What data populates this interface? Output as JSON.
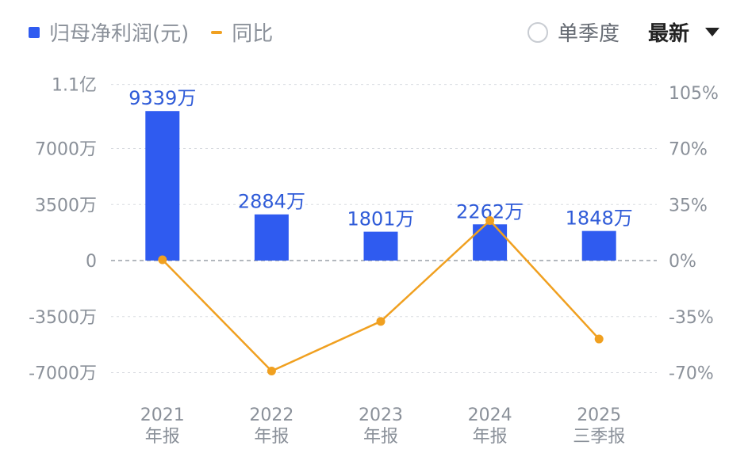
{
  "legend": {
    "bar_label": "归母净利润(元)",
    "line_label": "同比"
  },
  "controls": {
    "quarter_label": "单季度",
    "latest_label": "最新"
  },
  "colors": {
    "bar": "#2f5bf0",
    "line": "#f0a020",
    "axis_text": "#8a9099",
    "grid": "#d8dbe0"
  },
  "chart_data": {
    "type": "bar",
    "categories": [
      [
        "2021",
        "年报"
      ],
      [
        "2022",
        "年报"
      ],
      [
        "2023",
        "年报"
      ],
      [
        "2024",
        "年报"
      ],
      [
        "2025",
        "三季报"
      ]
    ],
    "series": [
      {
        "name": "归母净利润(元)",
        "type": "bar",
        "axis": "left",
        "values": [
          93390000,
          28840000,
          18010000,
          22620000,
          18480000
        ],
        "labels": [
          "9339万",
          "2884万",
          "1801万",
          "2262万",
          "1848万"
        ]
      },
      {
        "name": "同比",
        "type": "line",
        "axis": "right",
        "values": [
          0.5,
          -69,
          -38,
          25,
          -49
        ]
      }
    ],
    "y_left": {
      "ticks": [
        110000000,
        70000000,
        35000000,
        0,
        -35000000,
        -70000000
      ],
      "tick_labels": [
        "1.1亿",
        "7000万",
        "3500万",
        "0",
        "-3500万",
        "-7000万"
      ]
    },
    "y_right": {
      "ticks": [
        105,
        70,
        35,
        0,
        -35,
        -70
      ],
      "tick_labels": [
        "105%",
        "70%",
        "35%",
        "0%",
        "-35%",
        "-70%"
      ]
    },
    "grid": true,
    "legend_position": "top-left"
  }
}
